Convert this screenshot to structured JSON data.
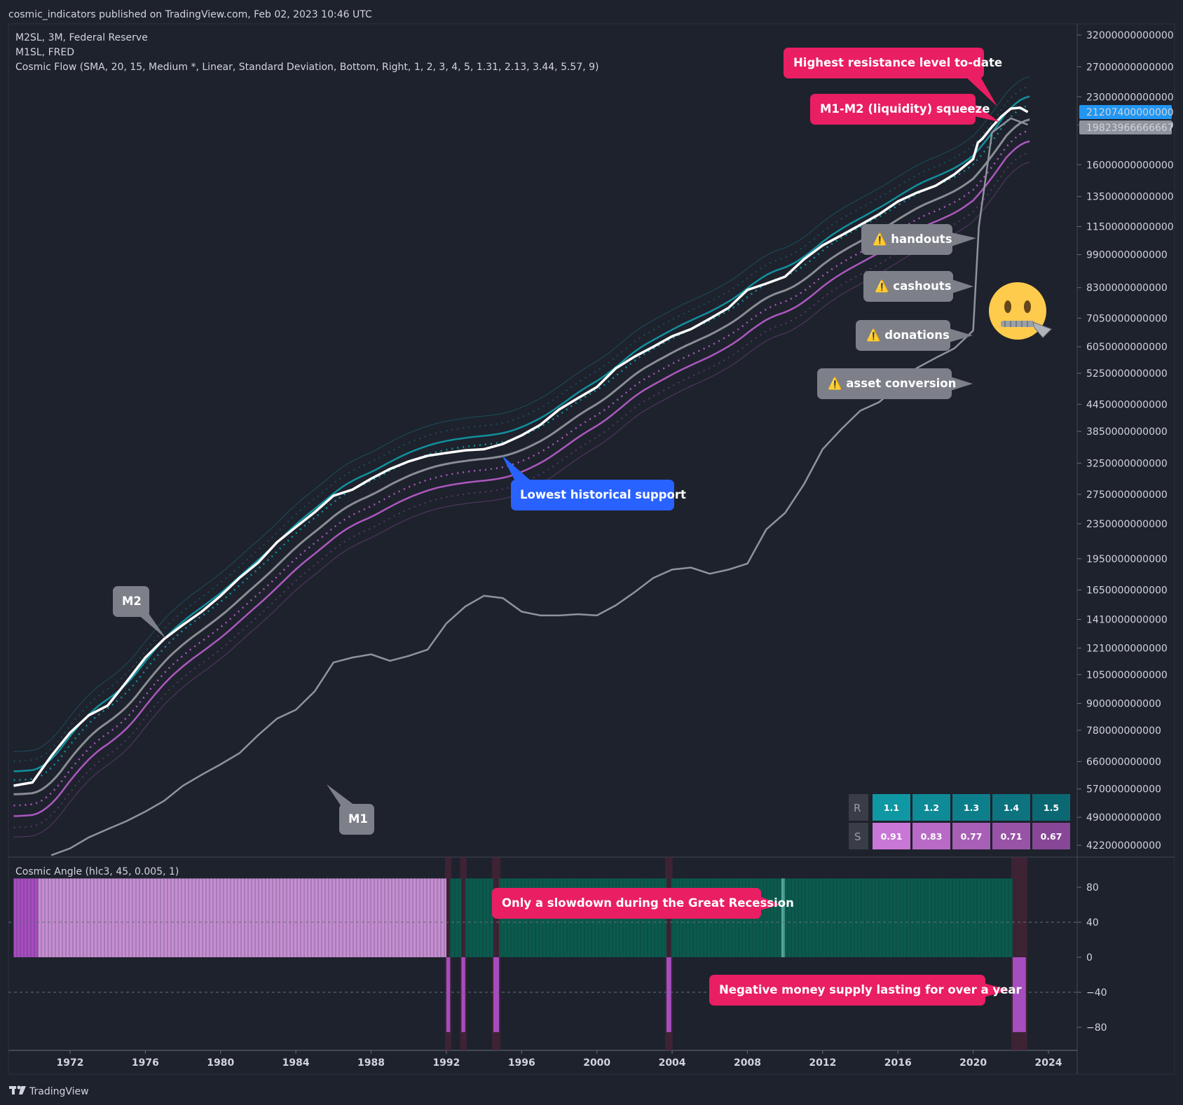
{
  "header": {
    "published": "cosmic_indicators published on TradingView.com, Feb 02, 2023 10:46 UTC"
  },
  "legend": {
    "line1": "M2SL, 3M, Federal Reserve",
    "line2": "M1SL, FRED",
    "line3": "Cosmic Flow (SMA, 20, 15, Medium *, Linear, Standard Deviation, Bottom, Right, 1, 2, 3, 4, 5, 1.31, 2.13, 3.44, 5.57, 9)",
    "osc": "Cosmic Angle (hlc3, 45, 0.005, 1)"
  },
  "footer": {
    "logo_text": "TradingView"
  },
  "colors": {
    "background": "#1e222d",
    "m2_line": "#ffffff",
    "m1_line": "#8f939b",
    "teal_band": "#0fa3b1",
    "purple_band": "#c561d8",
    "sma": "#8a8d94",
    "callout_red": "#e91e63",
    "callout_blue": "#2962ff",
    "callout_gray": "#7d8089",
    "osc_positive": "#0a5b4d",
    "osc_negative_light": "#c68ed2",
    "osc_negative": "#a34fbf"
  },
  "callouts": {
    "highest_resistance": "Highest resistance level to-date",
    "squeeze": "M1-M2 (liquidity) squeeze",
    "handouts": "⚠️ handouts",
    "cashouts": "⚠️ cashouts",
    "donations": "⚠️ donations",
    "asset_conversion": "⚠️ asset conversion",
    "lowest_support": "Lowest historical support",
    "m2": "M2",
    "m1": "M1",
    "great_recession": "Only a slowdown during the Great Recession",
    "negative_supply": "Negative money supply lasting for over a year"
  },
  "emoji": "zipper-mouth-face",
  "price_badges": {
    "m2_last": "21207400000000",
    "m1_last": "19823966666667"
  },
  "table": {
    "r_label": "R",
    "s_label": "S",
    "r_values": [
      "1.1",
      "1.2",
      "1.3",
      "1.4",
      "1.5"
    ],
    "s_values": [
      "0.91",
      "0.83",
      "0.77",
      "0.71",
      "0.67"
    ]
  },
  "chart_data": [
    {
      "type": "line",
      "scale": "log",
      "yticks": [
        "32000000000000",
        "27000000000000",
        "23000000000000",
        "19800000000000",
        "16000000000000",
        "13500000000000",
        "11500000000000",
        "9900000000000",
        "8300000000000",
        "7050000000000",
        "6050000000000",
        "5250000000000",
        "4450000000000",
        "3850000000000",
        "3250000000000",
        "2750000000000",
        "2350000000000",
        "1950000000000",
        "1650000000000",
        "1410000000000",
        "1210000000000",
        "1050000000000",
        "900000000000",
        "780000000000",
        "660000000000",
        "570000000000",
        "490000000000",
        "422000000000"
      ],
      "xticks": [
        "1972",
        "1976",
        "1980",
        "1984",
        "1988",
        "1992",
        "1996",
        "2000",
        "2004",
        "2008",
        "2012",
        "2016",
        "2020",
        "2024"
      ],
      "series": [
        {
          "name": "M2SL",
          "x": [
            1969,
            1970,
            1971,
            1972,
            1973,
            1974,
            1975,
            1976,
            1977,
            1978,
            1979,
            1980,
            1981,
            1982,
            1983,
            1984,
            1985,
            1986,
            1987,
            1988,
            1989,
            1990,
            1991,
            1992,
            1993,
            1994,
            1995,
            1996,
            1997,
            1998,
            1999,
            2000,
            2001,
            2002,
            2003,
            2004,
            2005,
            2006,
            2007,
            2008,
            2009,
            2010,
            2011,
            2012,
            2013,
            2014,
            2015,
            2016,
            2017,
            2018,
            2019,
            2020,
            2020.25,
            2020.5,
            2021,
            2021.5,
            2022,
            2022.5,
            2022.9
          ],
          "y": [
            580000000000.0,
            590000000000.0,
            680000000000.0,
            770000000000.0,
            845000000000.0,
            890000000000.0,
            1010000000000.0,
            1150000000000.0,
            1270000000000.0,
            1370000000000.0,
            1470000000000.0,
            1600000000000.0,
            1760000000000.0,
            1910000000000.0,
            2130000000000.0,
            2310000000000.0,
            2500000000000.0,
            2730000000000.0,
            2820000000000.0,
            2990000000000.0,
            3150000000000.0,
            3280000000000.0,
            3380000000000.0,
            3430000000000.0,
            3480000000000.0,
            3500000000000.0,
            3600000000000.0,
            3770000000000.0,
            3990000000000.0,
            4330000000000.0,
            4600000000000.0,
            4880000000000.0,
            5390000000000.0,
            5740000000000.0,
            6050000000000.0,
            6400000000000.0,
            6650000000000.0,
            7030000000000.0,
            7450000000000.0,
            8200000000000.0,
            8480000000000.0,
            8800000000000.0,
            9650000000000.0,
            10400000000000.0,
            10980000000000.0,
            11600000000000.0,
            12280000000000.0,
            13150000000000.0,
            13780000000000.0,
            14300000000000.0,
            15200000000000.0,
            16500000000000.0,
            18000000000000.0,
            18400000000000.0,
            19600000000000.0,
            20700000000000.0,
            21600000000000.0,
            21700000000000.0,
            21207000000000.0
          ]
        },
        {
          "name": "M1SL",
          "x": [
            1971,
            1972,
            1973,
            1974,
            1975,
            1976,
            1977,
            1978,
            1979,
            1980,
            1981,
            1982,
            1983,
            1984,
            1985,
            1986,
            1987,
            1988,
            1989,
            1990,
            1991,
            1992,
            1993,
            1994,
            1995,
            1996,
            1997,
            1998,
            1999,
            2000,
            2001,
            2002,
            2003,
            2004,
            2005,
            2006,
            2007,
            2008,
            2009,
            2010,
            2011,
            2012,
            2013,
            2014,
            2015,
            2016,
            2017,
            2018,
            2019,
            2020,
            2020.3,
            2021,
            2022,
            2022.9
          ],
          "y": [
            400000000000.0,
            415000000000.0,
            440000000000.0,
            460000000000.0,
            480000000000.0,
            505000000000.0,
            535000000000.0,
            580000000000.0,
            615000000000.0,
            650000000000.0,
            690000000000.0,
            760000000000.0,
            830000000000.0,
            870000000000.0,
            960000000000.0,
            1120000000000.0,
            1150000000000.0,
            1170000000000.0,
            1130000000000.0,
            1160000000000.0,
            1200000000000.0,
            1380000000000.0,
            1510000000000.0,
            1600000000000.0,
            1580000000000.0,
            1470000000000.0,
            1440000000000.0,
            1440000000000.0,
            1450000000000.0,
            1440000000000.0,
            1520000000000.0,
            1630000000000.0,
            1760000000000.0,
            1840000000000.0,
            1860000000000.0,
            1800000000000.0,
            1840000000000.0,
            1900000000000.0,
            2280000000000.0,
            2490000000000.0,
            2900000000000.0,
            3500000000000.0,
            3900000000000.0,
            4300000000000.0,
            4500000000000.0,
            4900000000000.0,
            5400000000000.0,
            5700000000000.0,
            6000000000000.0,
            6600000000000.0,
            11500000000000.0,
            19000000000000.0,
            20500000000000.0,
            19824000000000.0
          ]
        }
      ]
    },
    {
      "type": "bar",
      "name": "Cosmic Angle",
      "yticks": [
        "80",
        "40",
        "0",
        "−40",
        "−80"
      ],
      "ylim": [
        -100,
        100
      ],
      "segments": [
        {
          "x": [
            1969,
            1970.3
          ],
          "value": 100,
          "color": "#a64dbf"
        },
        {
          "x": [
            1970.3,
            1992
          ],
          "value": 100,
          "color": "#c68ed2"
        },
        {
          "x": [
            1992,
            1992.2
          ],
          "value": -90,
          "color": "#a64dbf"
        },
        {
          "x": [
            1992.2,
            1992.8
          ],
          "value": 100,
          "color": "#0a5b4d"
        },
        {
          "x": [
            1992.8,
            1993.0
          ],
          "value": -90,
          "color": "#a64dbf"
        },
        {
          "x": [
            1993.0,
            1994.5
          ],
          "value": 100,
          "color": "#0a5b4d"
        },
        {
          "x": [
            1994.5,
            1994.8
          ],
          "value": -90,
          "color": "#a64dbf"
        },
        {
          "x": [
            1994.8,
            2003.7
          ],
          "value": 100,
          "color": "#0a5b4d"
        },
        {
          "x": [
            2003.7,
            2003.95
          ],
          "value": -90,
          "color": "#a64dbf"
        },
        {
          "x": [
            2003.95,
            2009.8
          ],
          "value": 100,
          "color": "#0a5b4d"
        },
        {
          "x": [
            2009.8,
            2010.0
          ],
          "value": 100,
          "color": "#4fa89a"
        },
        {
          "x": [
            2010.0,
            2022.1
          ],
          "value": 100,
          "color": "#0a5b4d"
        },
        {
          "x": [
            2022.1,
            2022.8
          ],
          "value": -90,
          "color": "#a64dbf"
        }
      ]
    }
  ]
}
